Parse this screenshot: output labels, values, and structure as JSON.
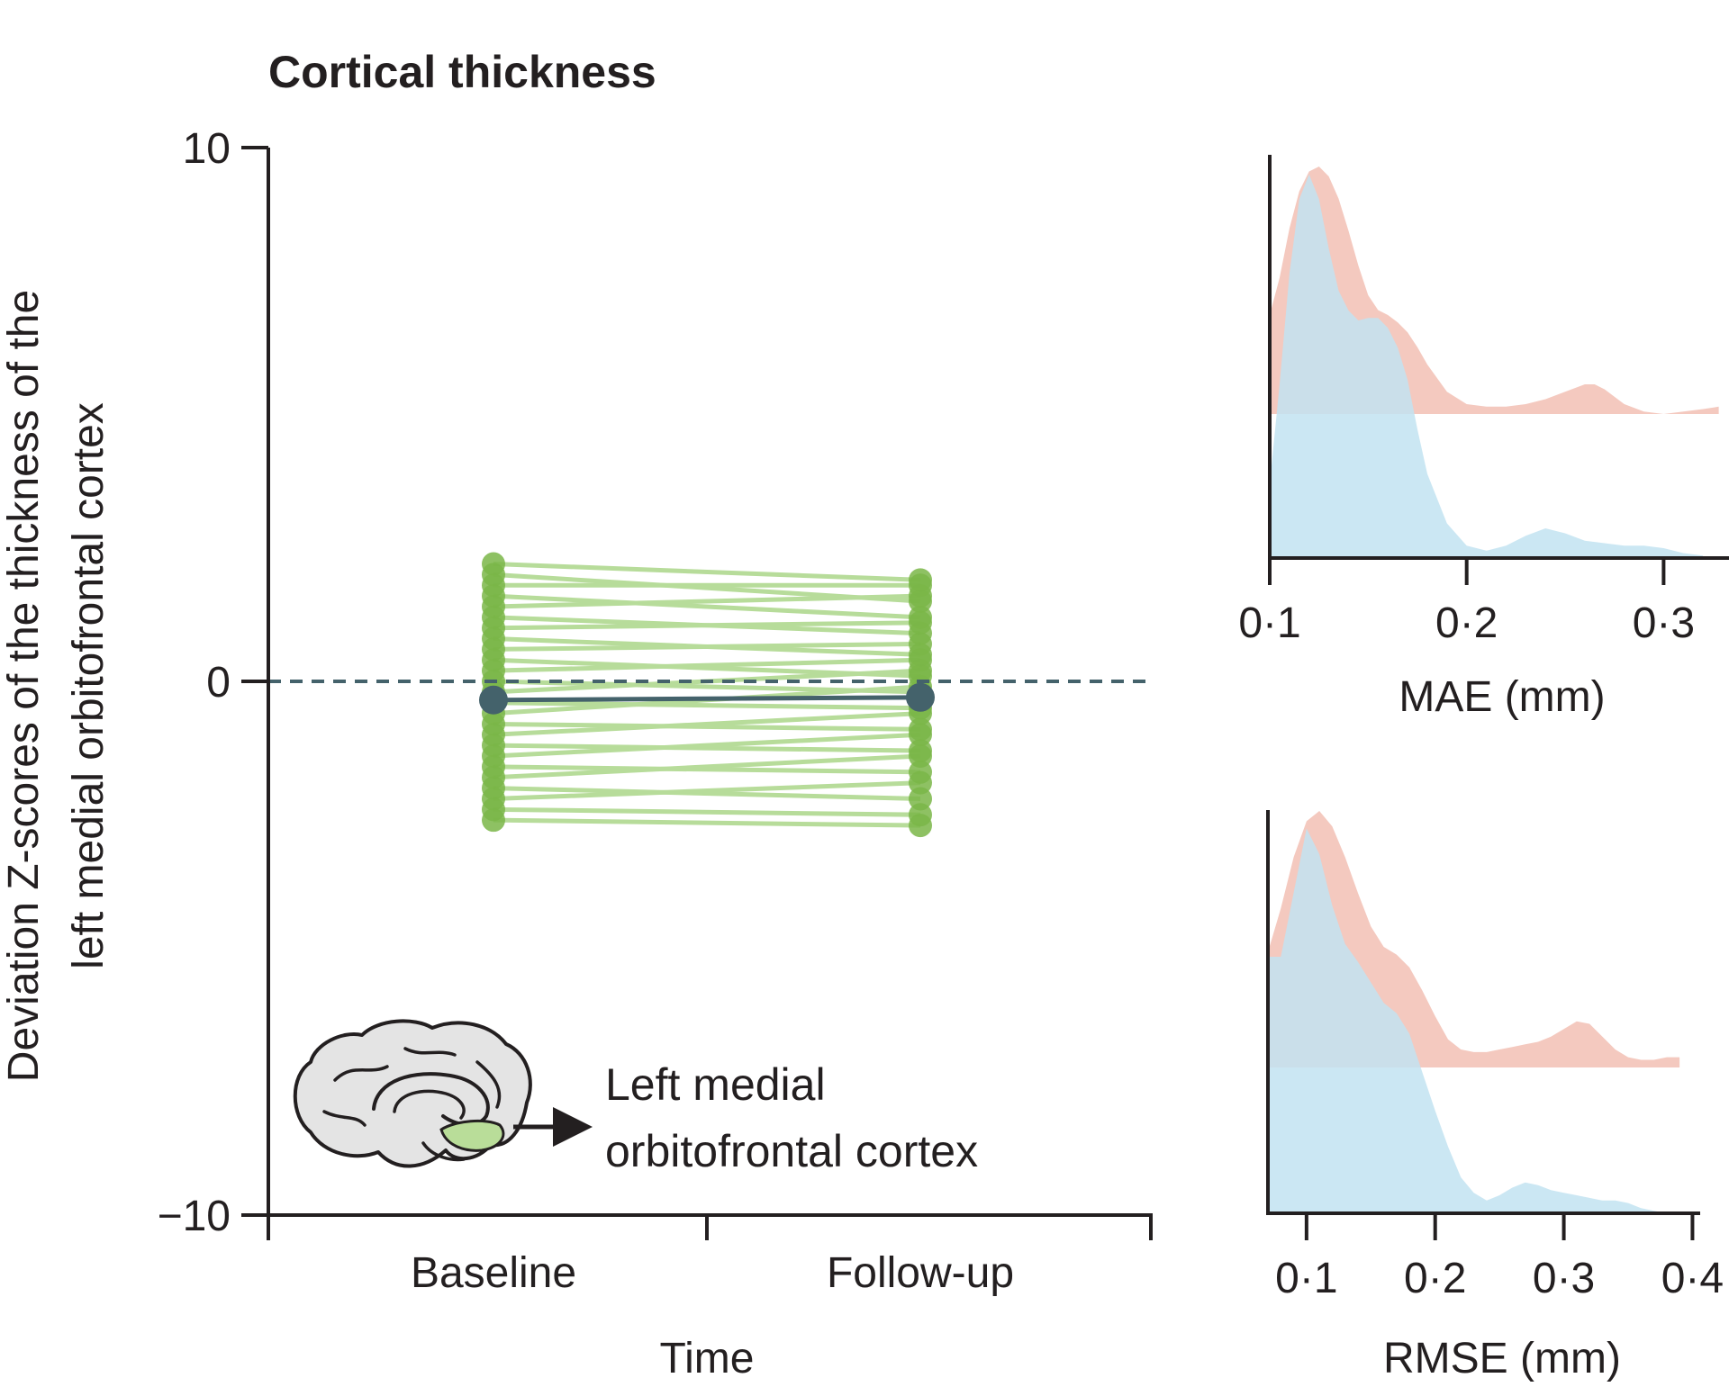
{
  "title": "Cortical thickness",
  "chart_data": [
    {
      "id": "main",
      "type": "line",
      "xlabel": "Time",
      "ylabel_lines": [
        "Deviation Z-scores of the thickness of the",
        "left medial orbitofrontal cortex"
      ],
      "categories": [
        "Baseline",
        "Follow-up"
      ],
      "ylim": [
        -10,
        10
      ],
      "yticks": [
        10,
        0,
        -10
      ],
      "ytick_labels": [
        "10",
        "0",
        "−10"
      ],
      "reference_line": 0,
      "mean_series": {
        "values": [
          -0.35,
          -0.3
        ],
        "color": "#44626b"
      },
      "subjects": {
        "color": "#7ab648",
        "line_color": "#b7dc9a",
        "baseline": [
          2.2,
          2.0,
          1.8,
          1.6,
          1.4,
          1.2,
          1.0,
          0.8,
          0.6,
          0.4,
          0.2,
          0.0,
          -0.2,
          -0.4,
          -0.6,
          -0.8,
          -1.0,
          -1.2,
          -1.4,
          -1.6,
          -1.8,
          -2.0,
          -2.2,
          -2.4,
          -2.6
        ],
        "followup": [
          1.9,
          1.5,
          1.8,
          1.2,
          1.6,
          0.9,
          1.1,
          0.5,
          0.7,
          0.1,
          0.4,
          -0.2,
          0.2,
          -0.5,
          -0.1,
          -0.9,
          -0.6,
          -1.3,
          -1.0,
          -1.7,
          -1.4,
          -2.2,
          -1.9,
          -2.5,
          -2.7
        ]
      },
      "annotation_lines": [
        "Left medial",
        "orbitofrontal cortex"
      ]
    },
    {
      "id": "mae",
      "type": "area",
      "xlabel": "MAE (mm)",
      "xlim": [
        0.1,
        0.33
      ],
      "xticks": [
        0.1,
        0.2,
        0.3
      ],
      "xtick_labels": [
        "0·1",
        "0·2",
        "0·3"
      ],
      "series": [
        {
          "color": "#f4c9bf",
          "x": [
            0.1,
            0.105,
            0.11,
            0.115,
            0.12,
            0.125,
            0.13,
            0.135,
            0.14,
            0.145,
            0.15,
            0.155,
            0.16,
            0.165,
            0.17,
            0.175,
            0.18,
            0.19,
            0.2,
            0.21,
            0.22,
            0.23,
            0.24,
            0.25,
            0.26,
            0.265,
            0.27,
            0.28,
            0.29,
            0.3,
            0.31,
            0.32,
            0.328
          ],
          "y": [
            0.4,
            0.55,
            0.75,
            0.9,
            0.98,
            1.0,
            0.96,
            0.87,
            0.74,
            0.6,
            0.48,
            0.42,
            0.4,
            0.37,
            0.33,
            0.27,
            0.2,
            0.09,
            0.04,
            0.03,
            0.03,
            0.04,
            0.06,
            0.09,
            0.12,
            0.12,
            0.1,
            0.04,
            0.01,
            0.0,
            0.01,
            0.02,
            0.03
          ]
        },
        {
          "color": "#c2e3f1",
          "x": [
            0.1,
            0.105,
            0.11,
            0.115,
            0.12,
            0.125,
            0.13,
            0.135,
            0.14,
            0.145,
            0.15,
            0.155,
            0.16,
            0.165,
            0.17,
            0.175,
            0.18,
            0.19,
            0.2,
            0.21,
            0.22,
            0.23,
            0.24,
            0.25,
            0.26,
            0.27,
            0.28,
            0.29,
            0.3,
            0.31,
            0.32
          ],
          "y": [
            0.3,
            0.7,
            1.15,
            1.45,
            1.55,
            1.45,
            1.25,
            1.08,
            1.0,
            0.96,
            0.97,
            0.97,
            0.93,
            0.85,
            0.72,
            0.52,
            0.34,
            0.14,
            0.05,
            0.03,
            0.05,
            0.09,
            0.12,
            0.1,
            0.07,
            0.06,
            0.05,
            0.05,
            0.04,
            0.02,
            0.01
          ]
        }
      ]
    },
    {
      "id": "rmse",
      "type": "area",
      "xlabel": "RMSE (mm)",
      "xlim": [
        0.07,
        0.42
      ],
      "xticks": [
        0.1,
        0.2,
        0.3,
        0.4
      ],
      "xtick_labels": [
        "0·1",
        "0·2",
        "0·3",
        "0·4"
      ],
      "series": [
        {
          "color": "#f4c9bf",
          "x": [
            0.07,
            0.08,
            0.09,
            0.1,
            0.11,
            0.12,
            0.13,
            0.14,
            0.15,
            0.16,
            0.17,
            0.18,
            0.19,
            0.2,
            0.21,
            0.22,
            0.23,
            0.24,
            0.25,
            0.26,
            0.27,
            0.28,
            0.29,
            0.3,
            0.31,
            0.32,
            0.33,
            0.34,
            0.35,
            0.36,
            0.37,
            0.38,
            0.39
          ],
          "y": [
            0.45,
            0.62,
            0.82,
            0.96,
            1.0,
            0.94,
            0.82,
            0.68,
            0.55,
            0.47,
            0.44,
            0.39,
            0.3,
            0.2,
            0.11,
            0.07,
            0.06,
            0.06,
            0.07,
            0.08,
            0.09,
            0.1,
            0.12,
            0.15,
            0.18,
            0.17,
            0.12,
            0.07,
            0.04,
            0.03,
            0.03,
            0.04,
            0.04
          ]
        },
        {
          "color": "#c2e3f1",
          "x": [
            0.07,
            0.08,
            0.09,
            0.1,
            0.11,
            0.12,
            0.13,
            0.14,
            0.15,
            0.16,
            0.17,
            0.18,
            0.19,
            0.2,
            0.21,
            0.22,
            0.23,
            0.24,
            0.25,
            0.26,
            0.27,
            0.28,
            0.29,
            0.3,
            0.31,
            0.32,
            0.33,
            0.34,
            0.35,
            0.36,
            0.37,
            0.38,
            0.39
          ],
          "y": [
            1.0,
            1.0,
            1.25,
            1.5,
            1.4,
            1.2,
            1.05,
            0.98,
            0.9,
            0.82,
            0.78,
            0.7,
            0.55,
            0.4,
            0.26,
            0.14,
            0.08,
            0.05,
            0.07,
            0.1,
            0.12,
            0.11,
            0.09,
            0.08,
            0.07,
            0.06,
            0.05,
            0.05,
            0.04,
            0.02,
            0.01,
            0.0,
            0.0
          ]
        }
      ]
    }
  ]
}
